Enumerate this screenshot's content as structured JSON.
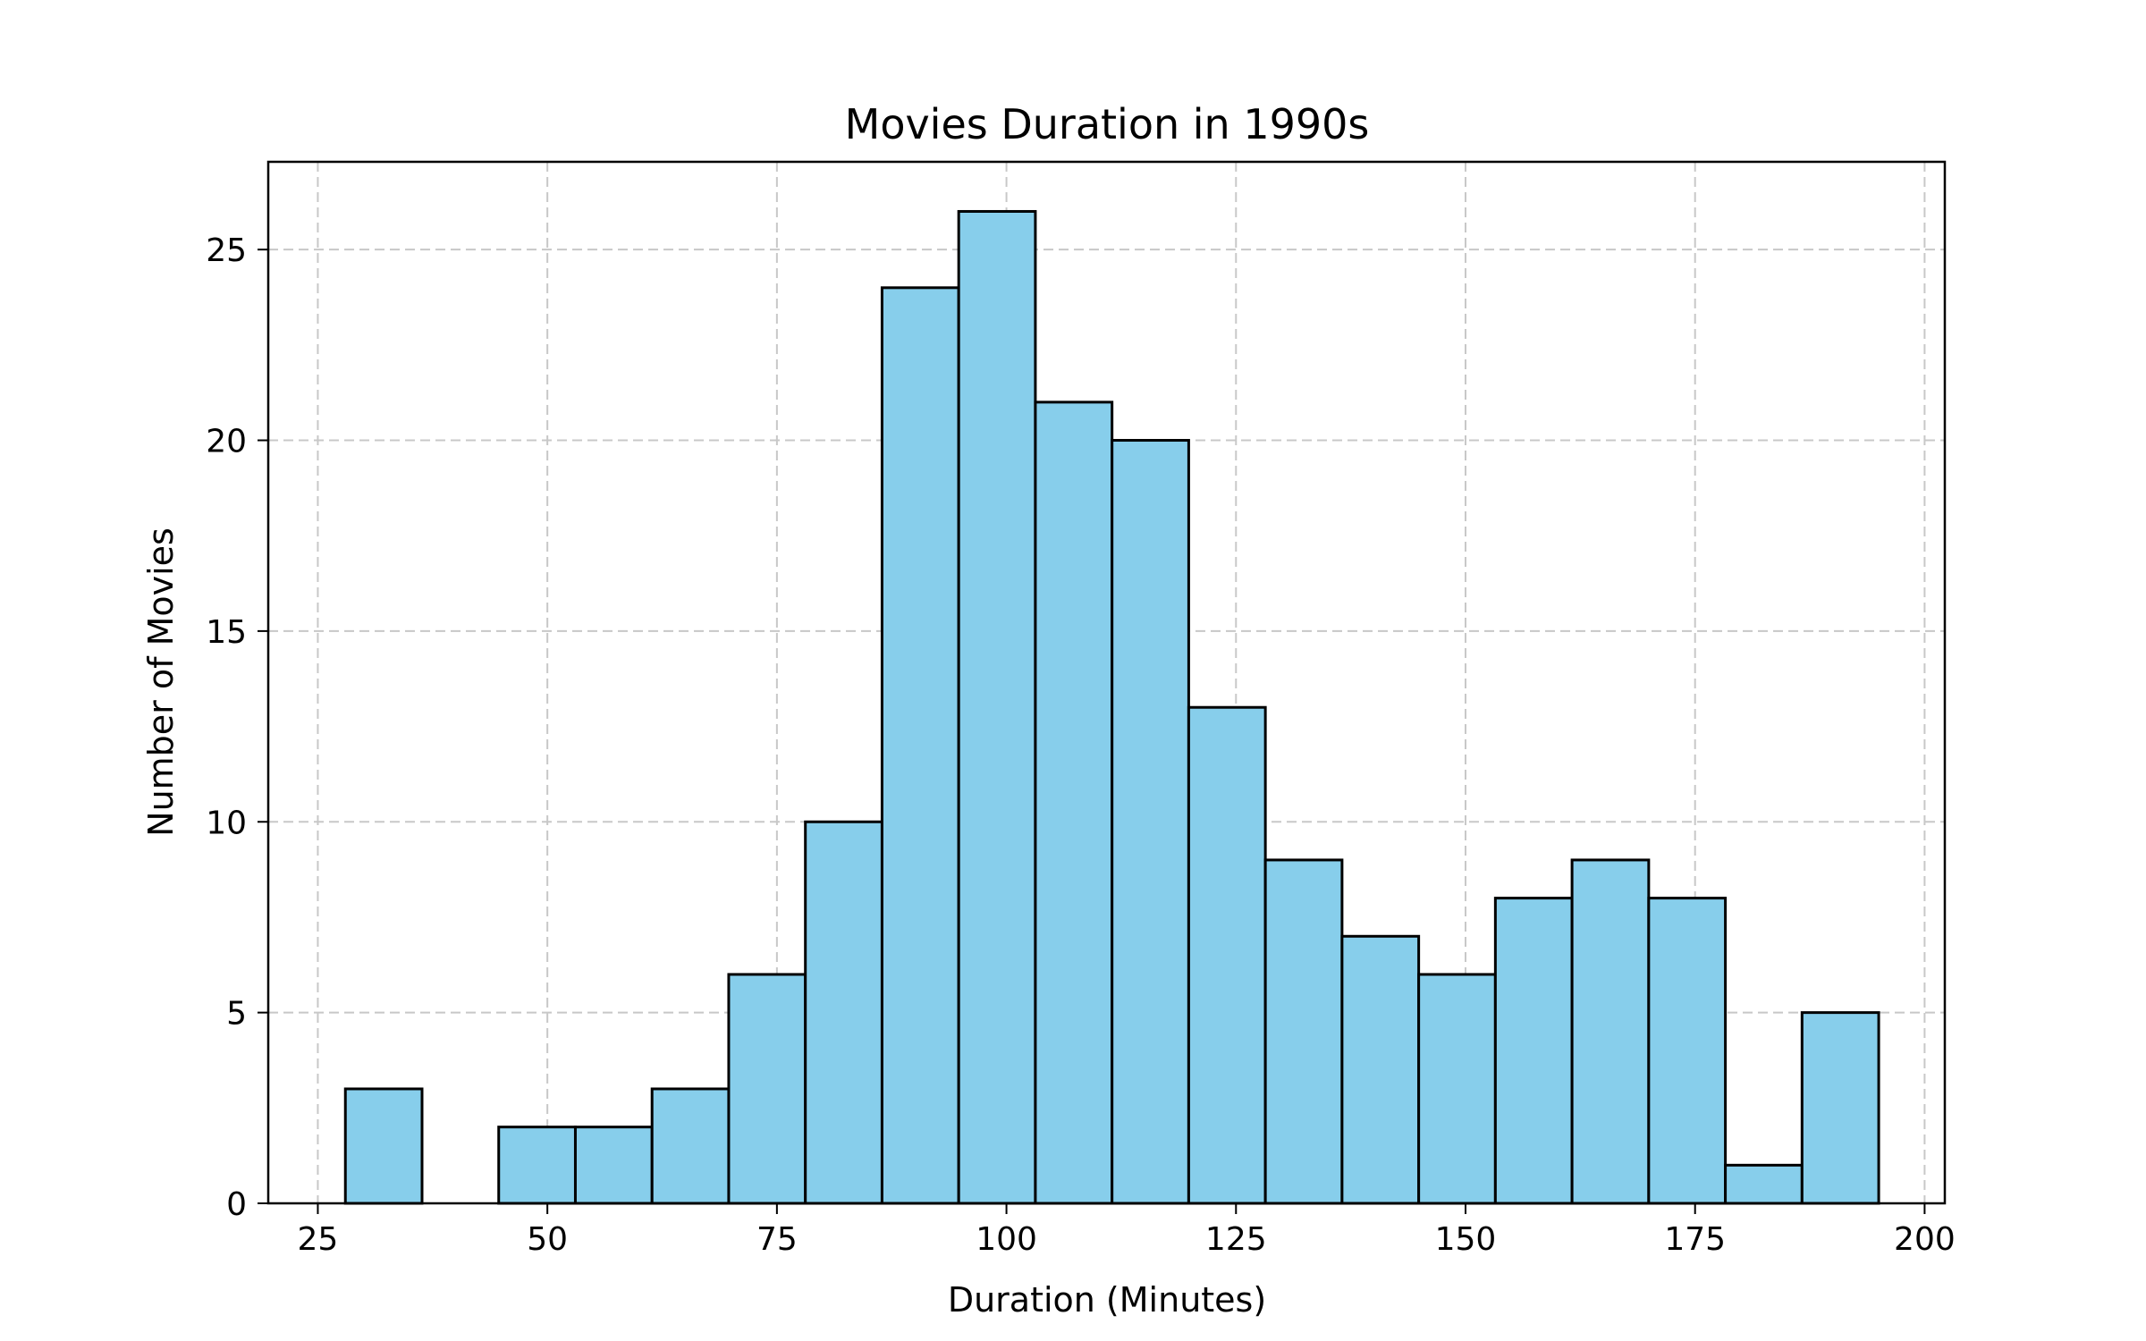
{
  "chart_data": {
    "type": "histogram",
    "title": "Movies Duration in 1990s",
    "xlabel": "Duration (Minutes)",
    "ylabel": "Number of Movies",
    "xlim": [
      19.6,
      202.2
    ],
    "ylim": [
      0,
      27.3
    ],
    "xticks": [
      25,
      50,
      75,
      100,
      125,
      150,
      175,
      200
    ],
    "yticks": [
      0,
      5,
      10,
      15,
      20,
      25
    ],
    "bin_start": 28,
    "bin_width": 8.35,
    "counts": [
      3,
      0,
      2,
      2,
      3,
      6,
      10,
      24,
      26,
      21,
      20,
      13,
      9,
      7,
      6,
      8,
      9,
      8,
      1,
      5
    ],
    "bar_color": "#87ceeb",
    "edge_color": "#000000",
    "grid": true,
    "legend": false
  }
}
